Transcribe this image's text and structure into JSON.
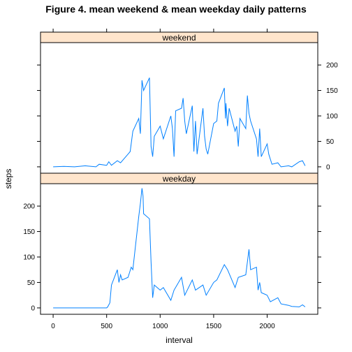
{
  "chart_data": {
    "type": "line",
    "title": "Figure 4. mean weekend & mean weekday daily patterns",
    "xlabel": "interval",
    "ylabel": "steps",
    "xlim": [
      -118,
      2473
    ],
    "ylim": [
      -12.5,
      244
    ],
    "x_ticks": [
      0,
      500,
      1000,
      1500,
      2000
    ],
    "y_ticks": [
      0,
      50,
      100,
      150,
      200
    ],
    "line_color": "#0080ff",
    "strip_color": "#ffe5cc",
    "panels": [
      {
        "name": "weekend",
        "y_axis_side": "right",
        "x": [
          0,
          100,
          200,
          300,
          400,
          430,
          500,
          520,
          545,
          600,
          630,
          700,
          720,
          745,
          800,
          815,
          830,
          845,
          900,
          915,
          930,
          945,
          1000,
          1030,
          1100,
          1115,
          1130,
          1145,
          1200,
          1215,
          1230,
          1245,
          1300,
          1315,
          1330,
          1345,
          1400,
          1415,
          1430,
          1445,
          1500,
          1530,
          1545,
          1600,
          1610,
          1615,
          1630,
          1645,
          1700,
          1715,
          1730,
          1745,
          1800,
          1815,
          1830,
          1845,
          1900,
          1915,
          1930,
          1945,
          2000,
          2015,
          2030,
          2045,
          2100,
          2130,
          2200,
          2230,
          2300,
          2330,
          2355
        ],
        "values": [
          0,
          1,
          0,
          2,
          0,
          5,
          3,
          10,
          3,
          12,
          8,
          25,
          30,
          70,
          95,
          65,
          170,
          150,
          175,
          40,
          20,
          60,
          80,
          55,
          100,
          75,
          20,
          110,
          115,
          135,
          90,
          65,
          120,
          30,
          90,
          25,
          115,
          60,
          35,
          25,
          85,
          90,
          125,
          155,
          95,
          125,
          80,
          115,
          70,
          80,
          40,
          95,
          75,
          140,
          105,
          90,
          55,
          20,
          75,
          20,
          45,
          25,
          15,
          5,
          8,
          0,
          2,
          0,
          10,
          12,
          2
        ]
      },
      {
        "name": "weekday",
        "y_axis_side": "left",
        "x": [
          0,
          100,
          200,
          300,
          400,
          500,
          510,
          530,
          545,
          600,
          615,
          630,
          645,
          700,
          715,
          730,
          745,
          800,
          815,
          830,
          840,
          845,
          900,
          915,
          930,
          945,
          1000,
          1030,
          1100,
          1130,
          1200,
          1230,
          1300,
          1330,
          1400,
          1430,
          1500,
          1530,
          1600,
          1630,
          1700,
          1730,
          1800,
          1830,
          1845,
          1900,
          1915,
          1930,
          1945,
          2000,
          2030,
          2100,
          2130,
          2200,
          2230,
          2300,
          2330,
          2355
        ],
        "values": [
          0,
          0,
          0,
          0,
          0,
          0,
          2,
          10,
          45,
          75,
          50,
          65,
          55,
          60,
          70,
          80,
          75,
          180,
          205,
          235,
          220,
          185,
          175,
          90,
          20,
          45,
          35,
          40,
          15,
          35,
          60,
          25,
          55,
          35,
          45,
          25,
          50,
          55,
          85,
          75,
          40,
          60,
          65,
          115,
          75,
          80,
          35,
          50,
          30,
          25,
          12,
          20,
          8,
          5,
          3,
          2,
          6,
          2
        ]
      }
    ]
  }
}
